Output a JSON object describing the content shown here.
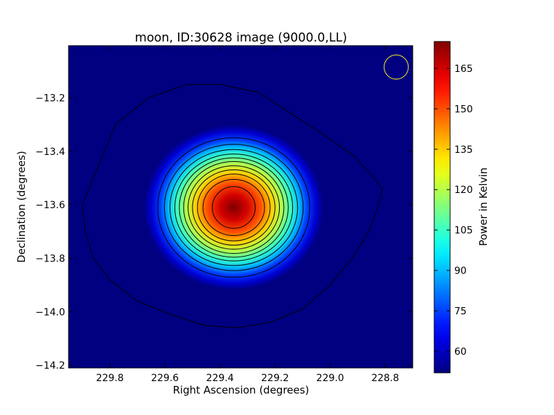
{
  "chart_data": {
    "type": "heatmap",
    "title": "moon, ID:30628 image (9000.0,LL)",
    "xlabel": "Right Ascension (degrees)",
    "ylabel": "Declination (degrees)",
    "xlim": [
      229.95,
      228.7
    ],
    "ylim": [
      -14.21,
      -13.005
    ],
    "x_ticks": [
      229.8,
      229.6,
      229.4,
      229.2,
      229.0,
      228.8
    ],
    "x_tick_labels": [
      "229.8",
      "229.6",
      "229.4",
      "229.2",
      "229.0",
      "228.8"
    ],
    "y_ticks": [
      -13.2,
      -13.4,
      -13.6,
      -13.8,
      -14.0,
      -14.2
    ],
    "y_tick_labels": [
      "−13.2",
      "−13.4",
      "−13.6",
      "−13.8",
      "−14.0",
      "−14.2"
    ],
    "colorbar": {
      "label": "Power in Kelvin",
      "colormap": "jet",
      "range": [
        52,
        175
      ],
      "ticks": [
        60,
        75,
        90,
        105,
        120,
        135,
        150,
        165
      ],
      "tick_labels": [
        "60",
        "75",
        "90",
        "105",
        "120",
        "135",
        "150",
        "165"
      ]
    },
    "source": {
      "ra": 229.35,
      "dec": -13.61,
      "peak_power": 175,
      "background_power": 52
    },
    "outer_contour": [
      [
        229.9,
        -13.6
      ],
      [
        229.84,
        -13.45
      ],
      [
        229.78,
        -13.3
      ],
      [
        229.66,
        -13.2
      ],
      [
        229.52,
        -13.15
      ],
      [
        229.4,
        -13.15
      ],
      [
        229.26,
        -13.18
      ],
      [
        229.14,
        -13.26
      ],
      [
        229.02,
        -13.34
      ],
      [
        228.91,
        -13.42
      ],
      [
        228.84,
        -13.5
      ],
      [
        228.81,
        -13.54
      ],
      [
        228.83,
        -13.62
      ],
      [
        228.86,
        -13.7
      ],
      [
        228.92,
        -13.8
      ],
      [
        229.0,
        -13.9
      ],
      [
        229.1,
        -13.99
      ],
      [
        229.22,
        -14.04
      ],
      [
        229.34,
        -14.06
      ],
      [
        229.46,
        -14.05
      ],
      [
        229.58,
        -14.01
      ],
      [
        229.7,
        -13.96
      ],
      [
        229.8,
        -13.88
      ],
      [
        229.86,
        -13.8
      ],
      [
        229.89,
        -13.7
      ]
    ],
    "contour_levels": [
      {
        "power": 65,
        "ra_halfwidth": 0.276,
        "dec_halfwidth": 0.261
      },
      {
        "power": 75,
        "ra_halfwidth": 0.252,
        "dec_halfwidth": 0.236
      },
      {
        "power": 85,
        "ra_halfwidth": 0.232,
        "dec_halfwidth": 0.217
      },
      {
        "power": 95,
        "ra_halfwidth": 0.214,
        "dec_halfwidth": 0.2
      },
      {
        "power": 105,
        "ra_halfwidth": 0.198,
        "dec_halfwidth": 0.186
      },
      {
        "power": 115,
        "ra_halfwidth": 0.182,
        "dec_halfwidth": 0.172
      },
      {
        "power": 125,
        "ra_halfwidth": 0.166,
        "dec_halfwidth": 0.156
      },
      {
        "power": 135,
        "ra_halfwidth": 0.15,
        "dec_halfwidth": 0.141
      },
      {
        "power": 145,
        "ra_halfwidth": 0.132,
        "dec_halfwidth": 0.125
      },
      {
        "power": 155,
        "ra_halfwidth": 0.112,
        "dec_halfwidth": 0.105
      },
      {
        "power": 168,
        "ra_halfwidth": 0.078,
        "dec_halfwidth": 0.078
      }
    ],
    "beam": {
      "ra": 228.76,
      "dec": -13.085,
      "radius_deg": 0.055,
      "color": "#c8c030"
    },
    "grid": false
  }
}
